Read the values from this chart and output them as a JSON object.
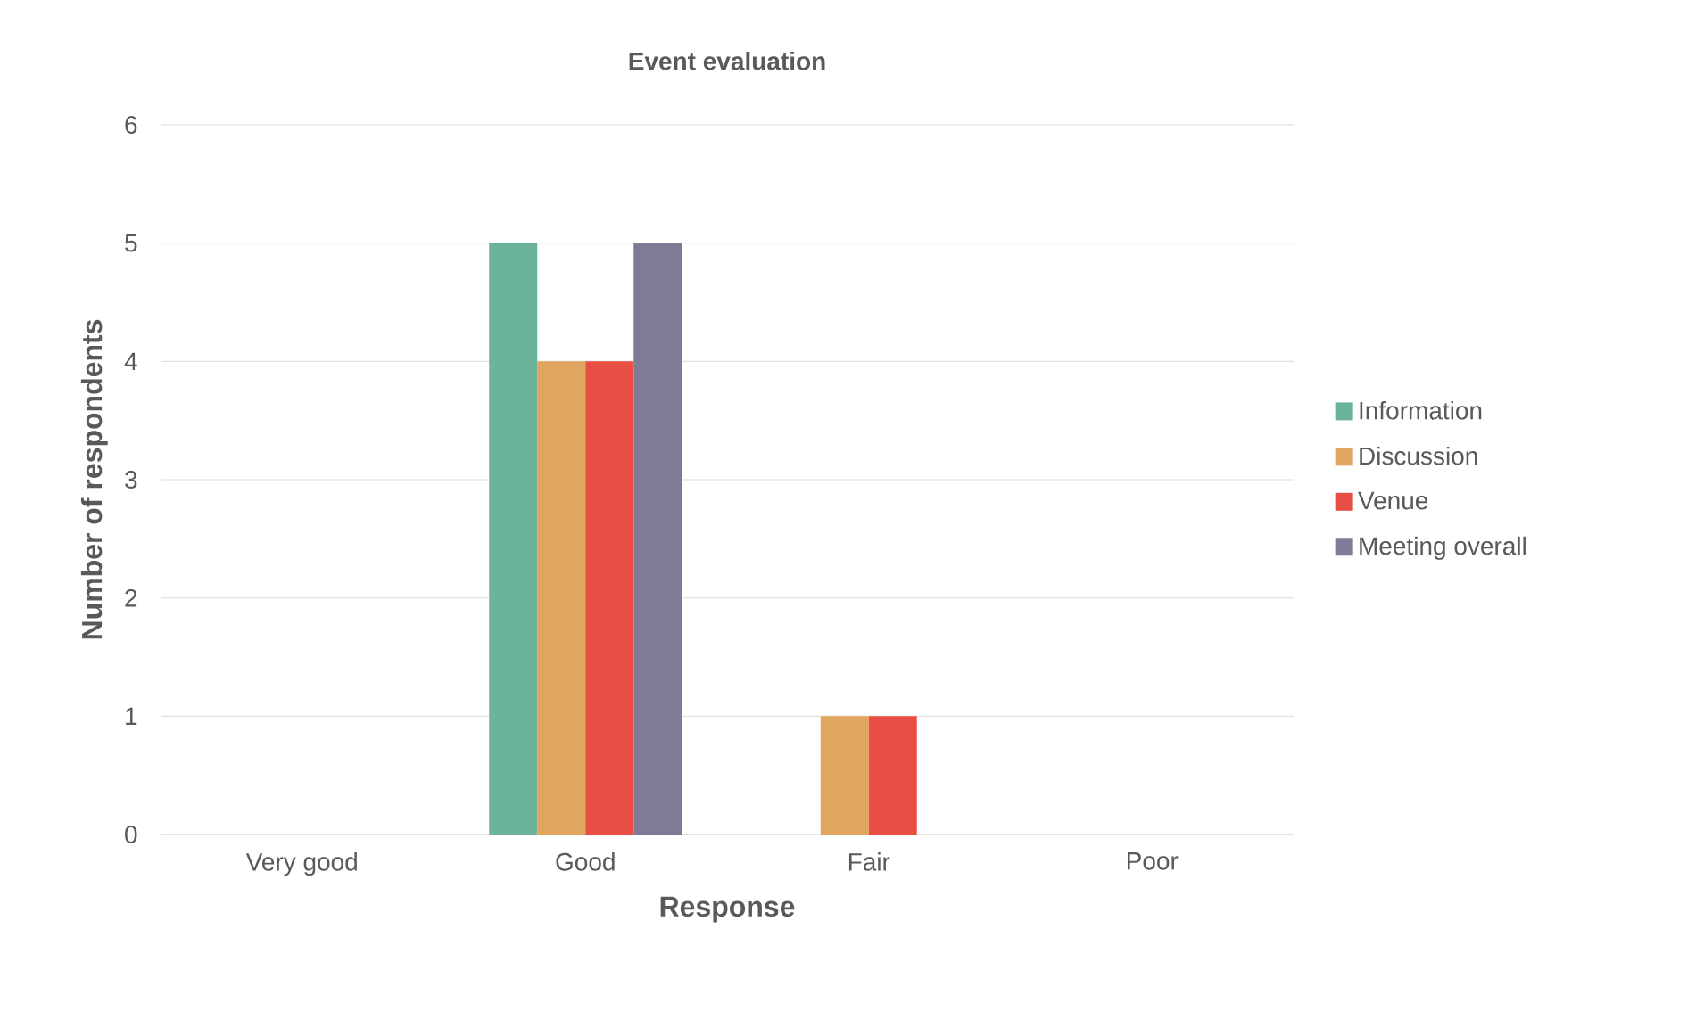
{
  "chart_data": {
    "type": "bar",
    "title": "Event evaluation",
    "xlabel": "Response",
    "ylabel": "Number of respondents",
    "categories": [
      "Very good",
      "Good",
      "Fair",
      "Poor"
    ],
    "series": [
      {
        "name": "Information",
        "color": "#6bb39b",
        "values": [
          0,
          5,
          0,
          0
        ]
      },
      {
        "name": "Discussion",
        "color": "#e0a55f",
        "values": [
          0,
          4,
          1,
          0
        ]
      },
      {
        "name": "Venue",
        "color": "#e84e43",
        "values": [
          0,
          4,
          1,
          0
        ]
      },
      {
        "name": "Meeting overall",
        "color": "#7f7b96",
        "values": [
          0,
          5,
          0,
          0
        ]
      }
    ],
    "ylim": [
      0,
      6
    ],
    "yticks": [
      0,
      1,
      2,
      3,
      4,
      5,
      6
    ],
    "grid": "y",
    "legend": "right"
  }
}
